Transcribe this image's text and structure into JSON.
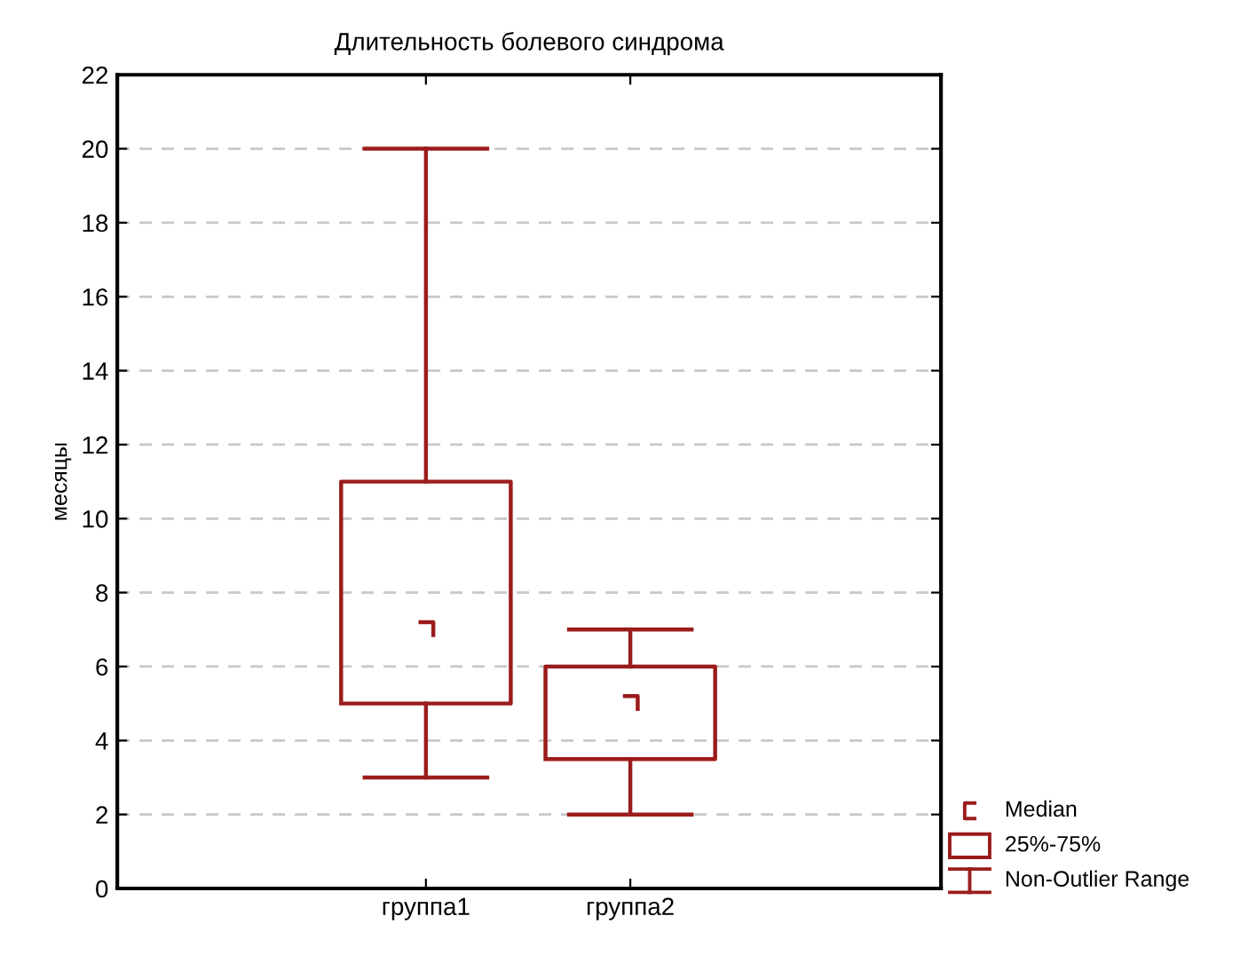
{
  "chart_data": {
    "type": "box",
    "title": "Длительность болевого синдрома",
    "ylabel": "месяцы",
    "categories": [
      "группа1",
      "группа2"
    ],
    "boxes": [
      {
        "low": 3,
        "q1": 5,
        "median": 7,
        "q3": 11,
        "high": 20
      },
      {
        "low": 2,
        "q1": 3.5,
        "median": 5,
        "q3": 6,
        "high": 7
      }
    ],
    "color": "#9b1c1c",
    "ylim": [
      0,
      22
    ],
    "yticks": [
      0,
      2,
      4,
      6,
      8,
      10,
      12,
      14,
      16,
      18,
      20,
      22
    ],
    "grid": "y",
    "annotations": [
      "Median",
      "25%-75%",
      "Non-Outlier Range"
    ]
  }
}
